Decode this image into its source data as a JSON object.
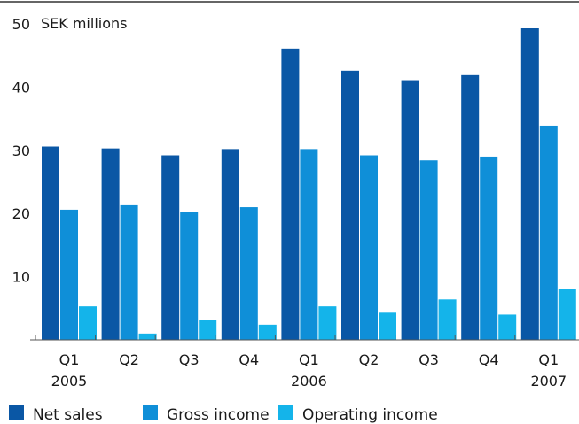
{
  "chart_data": {
    "type": "bar",
    "ylabel": "SEK millions",
    "ylim": [
      0,
      50
    ],
    "yticks": [
      10,
      20,
      30,
      40,
      50
    ],
    "categories": [
      "Q1",
      "Q2",
      "Q3",
      "Q4",
      "Q1",
      "Q2",
      "Q3",
      "Q4",
      "Q1"
    ],
    "year_labels": [
      {
        "category_index": 0,
        "label": "2005"
      },
      {
        "category_index": 4,
        "label": "2006"
      },
      {
        "category_index": 8,
        "label": "2007"
      }
    ],
    "series": [
      {
        "name": "Net sales",
        "color": "#0a57a5",
        "values": [
          30.6,
          30.3,
          29.2,
          30.2,
          46.1,
          42.6,
          41.1,
          41.9,
          49.3
        ]
      },
      {
        "name": "Gross income",
        "color": "#0f8fd8",
        "values": [
          20.6,
          21.3,
          20.3,
          21.0,
          30.2,
          29.2,
          28.4,
          29.0,
          33.9
        ]
      },
      {
        "name": "Operating income",
        "color": "#14b4ea",
        "values": [
          5.3,
          1.0,
          3.1,
          2.4,
          5.3,
          4.3,
          6.4,
          4.0,
          8.0
        ]
      }
    ],
    "legend_position": "bottom",
    "grid": false
  }
}
